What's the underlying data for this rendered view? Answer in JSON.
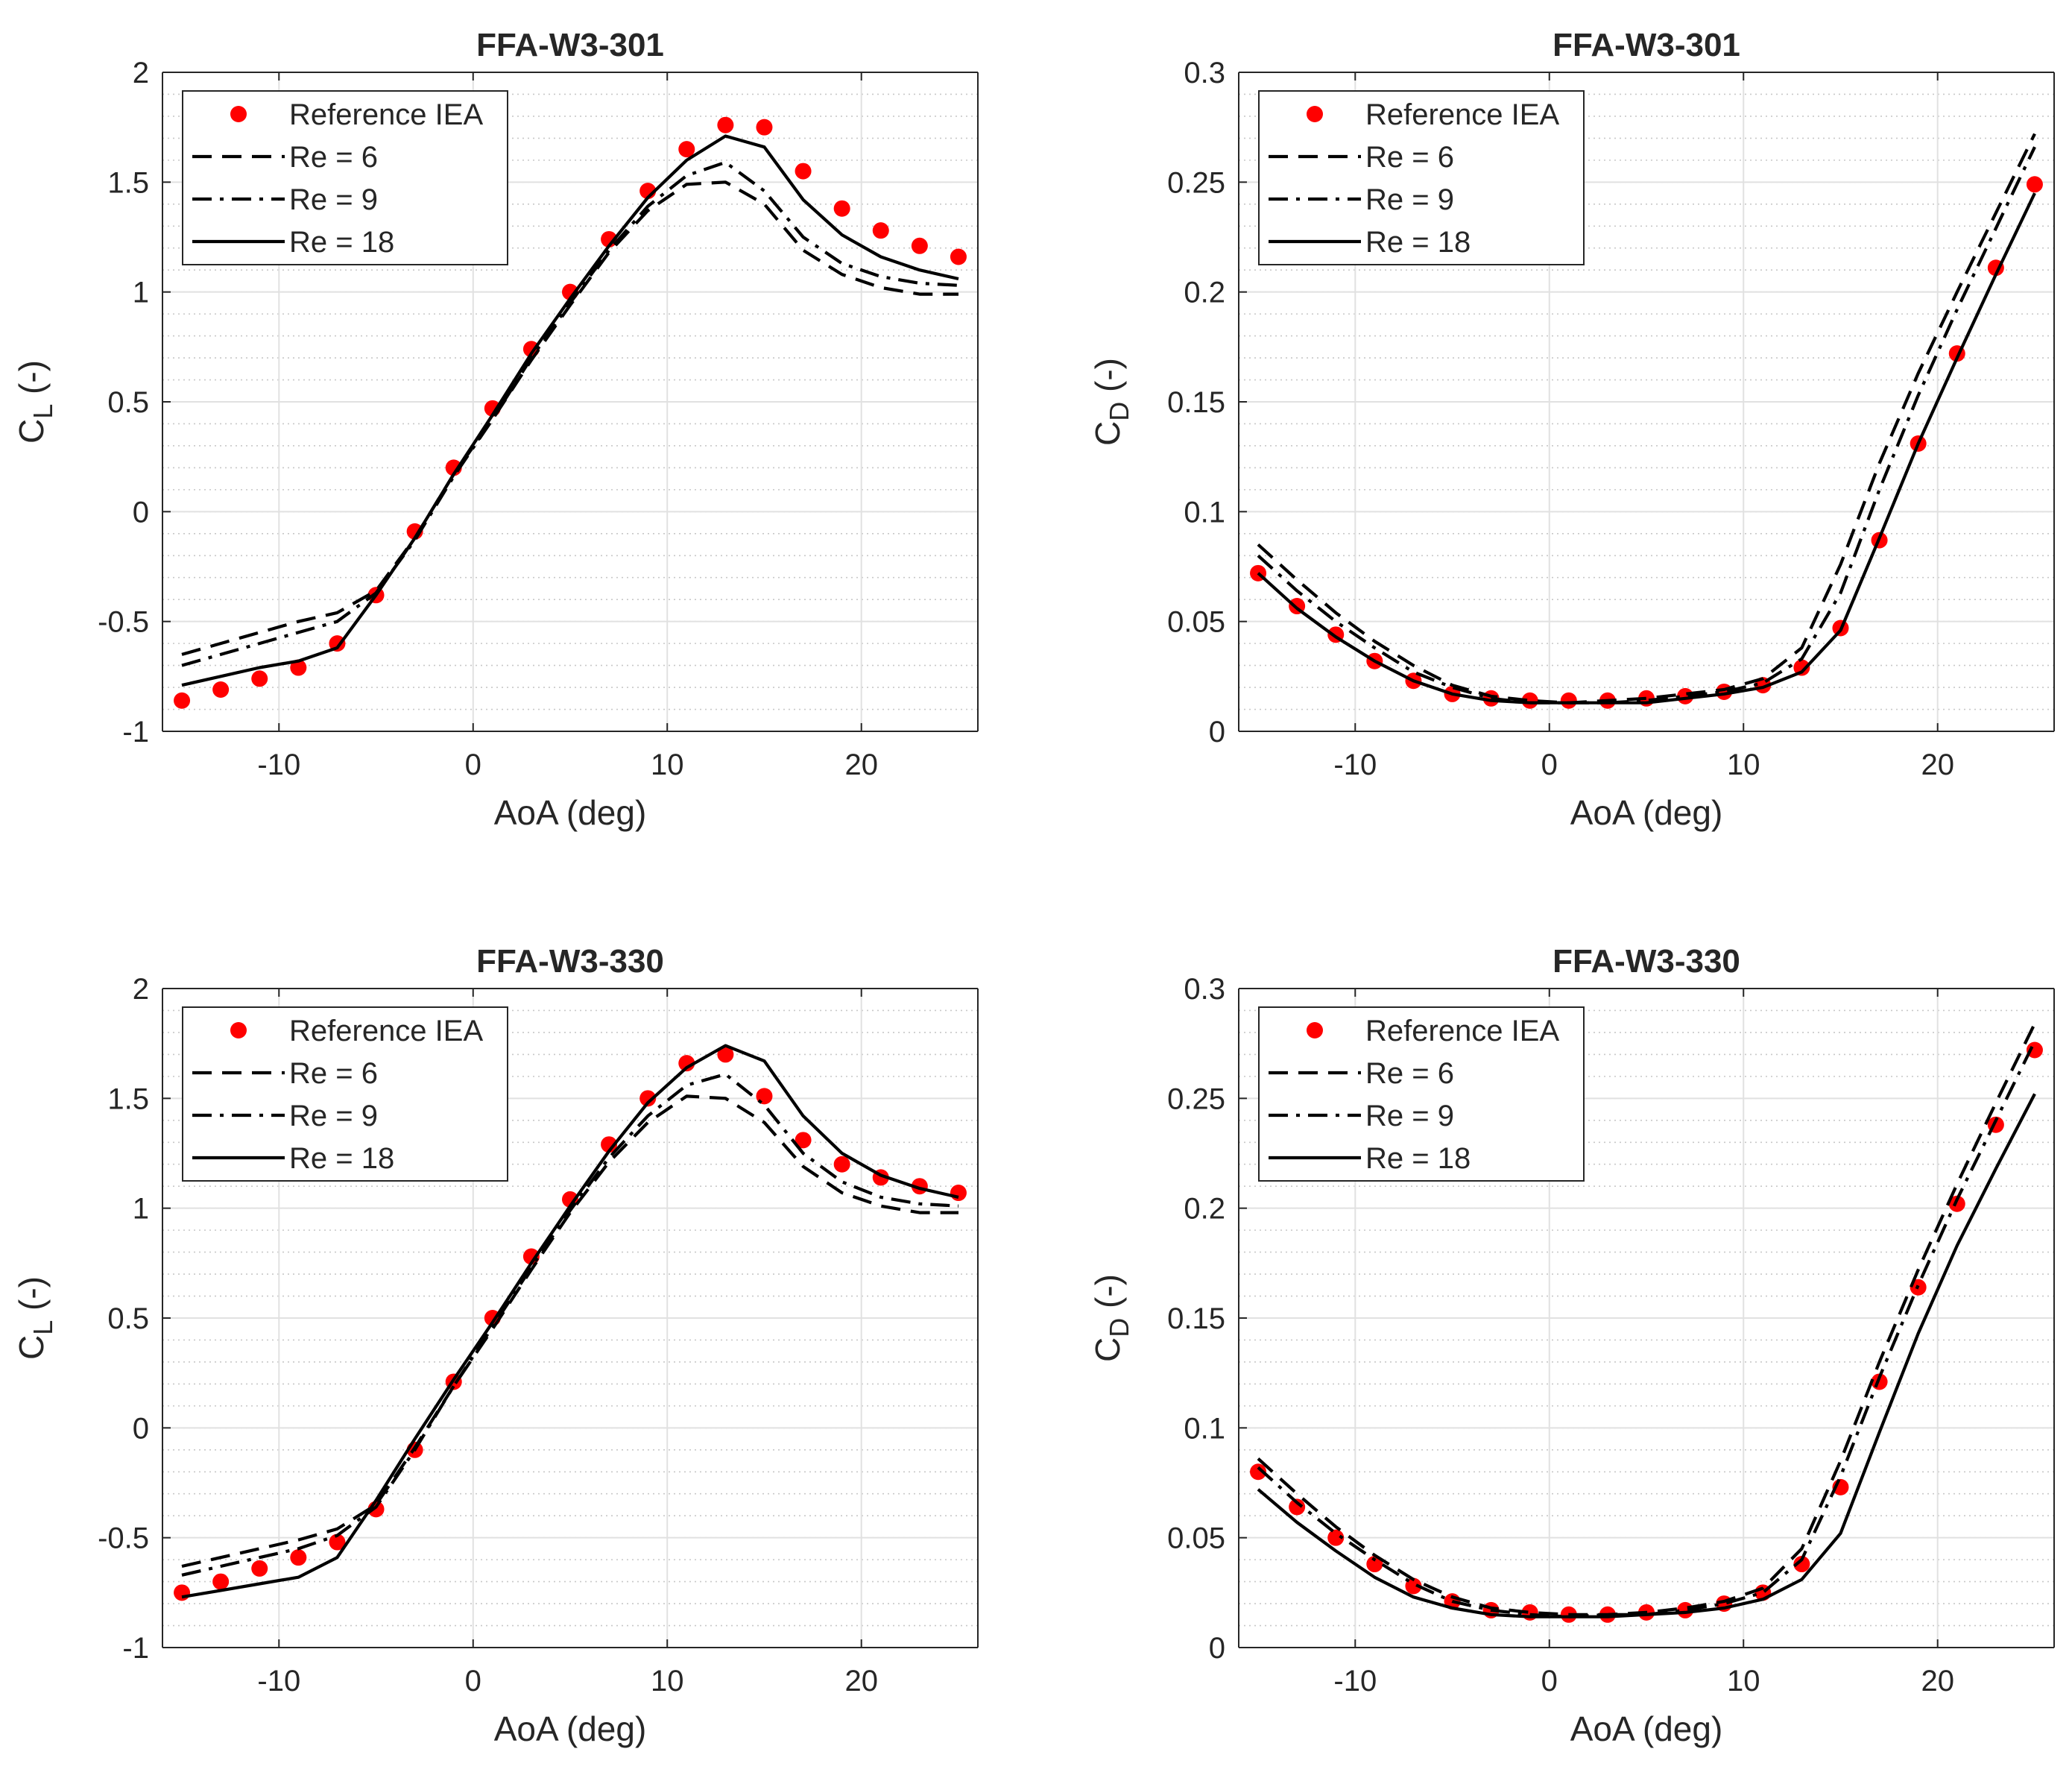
{
  "chart_data": [
    {
      "type": "line",
      "title": "FFA-W3-301",
      "xlabel": "AoA (deg)",
      "ylabel_main": "C",
      "ylabel_sub": "L",
      "ylabel_tail": " (-)",
      "xlim": [
        -16,
        26
      ],
      "ylim": [
        -1,
        2
      ],
      "xticks": [
        -10,
        0,
        10,
        20
      ],
      "xtick_labels": [
        "-10",
        "0",
        "10",
        "20"
      ],
      "yticks": [
        -1,
        -0.5,
        0,
        0.5,
        1,
        1.5,
        2
      ],
      "ytick_labels": [
        "-1",
        "-0.5",
        "0",
        "0.5",
        "1",
        "1.5",
        "2"
      ],
      "minor_ystep": 0.1,
      "grid": true,
      "legend_position": "top-left",
      "series": [
        {
          "name": "Reference IEA",
          "style": "markers",
          "color": "#ff0000",
          "x": [
            -15,
            -13,
            -11,
            -9,
            -7,
            -5,
            -3,
            -1,
            1,
            3,
            5,
            7,
            9,
            11,
            13,
            15,
            17,
            19,
            21,
            23,
            25
          ],
          "y": [
            -0.86,
            -0.81,
            -0.76,
            -0.71,
            -0.6,
            -0.38,
            -0.09,
            0.2,
            0.47,
            0.74,
            1.0,
            1.24,
            1.46,
            1.65,
            1.76,
            1.75,
            1.55,
            1.38,
            1.28,
            1.21,
            1.16
          ]
        },
        {
          "name": "Re = 6",
          "style": "dashed",
          "color": "#000000",
          "x": [
            -15,
            -13,
            -11,
            -9,
            -7,
            -5,
            -3,
            -1,
            1,
            3,
            5,
            7,
            9,
            11,
            13,
            15,
            17,
            19,
            21,
            23,
            25
          ],
          "y": [
            -0.65,
            -0.6,
            -0.55,
            -0.5,
            -0.46,
            -0.36,
            -0.12,
            0.17,
            0.42,
            0.69,
            0.94,
            1.18,
            1.37,
            1.49,
            1.5,
            1.4,
            1.19,
            1.08,
            1.02,
            0.99,
            0.99
          ]
        },
        {
          "name": "Re = 9",
          "style": "dashdot",
          "color": "#000000",
          "x": [
            -15,
            -13,
            -11,
            -9,
            -7,
            -5,
            -3,
            -1,
            1,
            3,
            5,
            7,
            9,
            11,
            13,
            15,
            17,
            19,
            21,
            23,
            25
          ],
          "y": [
            -0.7,
            -0.65,
            -0.6,
            -0.55,
            -0.5,
            -0.37,
            -0.13,
            0.16,
            0.42,
            0.7,
            0.95,
            1.19,
            1.39,
            1.53,
            1.59,
            1.46,
            1.25,
            1.13,
            1.07,
            1.04,
            1.03
          ]
        },
        {
          "name": "Re = 18",
          "style": "solid",
          "color": "#000000",
          "x": [
            -15,
            -13,
            -11,
            -9,
            -7,
            -5,
            -3,
            -1,
            1,
            3,
            5,
            7,
            9,
            11,
            13,
            15,
            17,
            19,
            21,
            23,
            25
          ],
          "y": [
            -0.79,
            -0.75,
            -0.71,
            -0.68,
            -0.62,
            -0.38,
            -0.12,
            0.17,
            0.44,
            0.72,
            0.97,
            1.21,
            1.43,
            1.6,
            1.71,
            1.66,
            1.42,
            1.26,
            1.16,
            1.1,
            1.06
          ]
        }
      ]
    },
    {
      "type": "line",
      "title": "FFA-W3-301",
      "xlabel": "AoA (deg)",
      "ylabel_main": "C",
      "ylabel_sub": "D",
      "ylabel_tail": " (-)",
      "xlim": [
        -16,
        26
      ],
      "ylim": [
        0,
        0.3
      ],
      "xticks": [
        -10,
        0,
        10,
        20
      ],
      "xtick_labels": [
        "-10",
        "0",
        "10",
        "20"
      ],
      "yticks": [
        0,
        0.05,
        0.1,
        0.15,
        0.2,
        0.25,
        0.3
      ],
      "ytick_labels": [
        "0",
        "0.05",
        "0.1",
        "0.15",
        "0.2",
        "0.25",
        "0.3"
      ],
      "minor_ystep": 0.01,
      "grid": true,
      "legend_position": "top-left",
      "series": [
        {
          "name": "Reference IEA",
          "style": "markers",
          "color": "#ff0000",
          "x": [
            -15,
            -13,
            -11,
            -9,
            -7,
            -5,
            -3,
            -1,
            1,
            3,
            5,
            7,
            9,
            11,
            13,
            15,
            17,
            19,
            21,
            23,
            25
          ],
          "y": [
            0.072,
            0.057,
            0.044,
            0.032,
            0.023,
            0.017,
            0.015,
            0.014,
            0.014,
            0.014,
            0.015,
            0.016,
            0.018,
            0.021,
            0.029,
            0.047,
            0.087,
            0.131,
            0.172,
            0.211,
            0.249
          ]
        },
        {
          "name": "Re = 6",
          "style": "dashed",
          "color": "#000000",
          "x": [
            -15,
            -13,
            -11,
            -9,
            -7,
            -5,
            -3,
            -1,
            1,
            3,
            5,
            7,
            9,
            11,
            13,
            15,
            17,
            19,
            21,
            23,
            25
          ],
          "y": [
            0.085,
            0.069,
            0.054,
            0.041,
            0.03,
            0.021,
            0.016,
            0.014,
            0.013,
            0.014,
            0.015,
            0.017,
            0.019,
            0.024,
            0.038,
            0.076,
            0.122,
            0.163,
            0.2,
            0.236,
            0.272
          ]
        },
        {
          "name": "Re = 9",
          "style": "dashdot",
          "color": "#000000",
          "x": [
            -15,
            -13,
            -11,
            -9,
            -7,
            -5,
            -3,
            -1,
            1,
            3,
            5,
            7,
            9,
            11,
            13,
            15,
            17,
            19,
            21,
            23,
            25
          ],
          "y": [
            0.08,
            0.064,
            0.05,
            0.038,
            0.027,
            0.02,
            0.015,
            0.013,
            0.013,
            0.013,
            0.014,
            0.016,
            0.018,
            0.022,
            0.033,
            0.063,
            0.11,
            0.153,
            0.192,
            0.229,
            0.266
          ]
        },
        {
          "name": "Re = 18",
          "style": "solid",
          "color": "#000000",
          "x": [
            -15,
            -13,
            -11,
            -9,
            -7,
            -5,
            -3,
            -1,
            1,
            3,
            5,
            7,
            9,
            11,
            13,
            15,
            17,
            19,
            21,
            23,
            25
          ],
          "y": [
            0.072,
            0.056,
            0.043,
            0.032,
            0.023,
            0.017,
            0.014,
            0.013,
            0.013,
            0.013,
            0.013,
            0.015,
            0.017,
            0.02,
            0.027,
            0.046,
            0.088,
            0.131,
            0.17,
            0.208,
            0.245
          ]
        }
      ]
    },
    {
      "type": "line",
      "title": "FFA-W3-330",
      "xlabel": "AoA (deg)",
      "ylabel_main": "C",
      "ylabel_sub": "L",
      "ylabel_tail": " (-)",
      "xlim": [
        -16,
        26
      ],
      "ylim": [
        -1,
        2
      ],
      "xticks": [
        -10,
        0,
        10,
        20
      ],
      "xtick_labels": [
        "-10",
        "0",
        "10",
        "20"
      ],
      "yticks": [
        -1,
        -0.5,
        0,
        0.5,
        1,
        1.5,
        2
      ],
      "ytick_labels": [
        "-1",
        "-0.5",
        "0",
        "0.5",
        "1",
        "1.5",
        "2"
      ],
      "minor_ystep": 0.1,
      "grid": true,
      "legend_position": "top-left",
      "series": [
        {
          "name": "Reference IEA",
          "style": "markers",
          "color": "#ff0000",
          "x": [
            -15,
            -13,
            -11,
            -9,
            -7,
            -5,
            -3,
            -1,
            1,
            3,
            5,
            7,
            9,
            11,
            13,
            15,
            17,
            19,
            21,
            23,
            25
          ],
          "y": [
            -0.75,
            -0.7,
            -0.64,
            -0.59,
            -0.52,
            -0.37,
            -0.1,
            0.21,
            0.5,
            0.78,
            1.04,
            1.29,
            1.5,
            1.66,
            1.7,
            1.51,
            1.31,
            1.2,
            1.14,
            1.1,
            1.07
          ]
        },
        {
          "name": "Re = 6",
          "style": "dashed",
          "color": "#000000",
          "x": [
            -15,
            -13,
            -11,
            -9,
            -7,
            -5,
            -3,
            -1,
            1,
            3,
            5,
            7,
            9,
            11,
            13,
            15,
            17,
            19,
            21,
            23,
            25
          ],
          "y": [
            -0.63,
            -0.59,
            -0.55,
            -0.51,
            -0.46,
            -0.35,
            -0.09,
            0.19,
            0.45,
            0.72,
            0.98,
            1.21,
            1.39,
            1.51,
            1.5,
            1.39,
            1.19,
            1.07,
            1.01,
            0.98,
            0.98
          ]
        },
        {
          "name": "Re = 9",
          "style": "dashdot",
          "color": "#000000",
          "x": [
            -15,
            -13,
            -11,
            -9,
            -7,
            -5,
            -3,
            -1,
            1,
            3,
            5,
            7,
            9,
            11,
            13,
            15,
            17,
            19,
            21,
            23,
            25
          ],
          "y": [
            -0.67,
            -0.63,
            -0.59,
            -0.55,
            -0.49,
            -0.36,
            -0.1,
            0.19,
            0.46,
            0.73,
            0.99,
            1.23,
            1.42,
            1.56,
            1.61,
            1.47,
            1.25,
            1.12,
            1.05,
            1.02,
            1.01
          ]
        },
        {
          "name": "Re = 18",
          "style": "solid",
          "color": "#000000",
          "x": [
            -15,
            -13,
            -11,
            -9,
            -7,
            -5,
            -3,
            -1,
            1,
            3,
            5,
            7,
            9,
            11,
            13,
            15,
            17,
            19,
            21,
            23,
            25
          ],
          "y": [
            -0.77,
            -0.74,
            -0.71,
            -0.68,
            -0.59,
            -0.33,
            -0.05,
            0.22,
            0.48,
            0.75,
            1.01,
            1.26,
            1.48,
            1.64,
            1.74,
            1.67,
            1.42,
            1.25,
            1.15,
            1.09,
            1.05
          ]
        }
      ]
    },
    {
      "type": "line",
      "title": "FFA-W3-330",
      "xlabel": "AoA (deg)",
      "ylabel_main": "C",
      "ylabel_sub": "D",
      "ylabel_tail": " (-)",
      "xlim": [
        -16,
        26
      ],
      "ylim": [
        0,
        0.3
      ],
      "xticks": [
        -10,
        0,
        10,
        20
      ],
      "xtick_labels": [
        "-10",
        "0",
        "10",
        "20"
      ],
      "yticks": [
        0,
        0.05,
        0.1,
        0.15,
        0.2,
        0.25,
        0.3
      ],
      "ytick_labels": [
        "0",
        "0.05",
        "0.1",
        "0.15",
        "0.2",
        "0.25",
        "0.3"
      ],
      "minor_ystep": 0.01,
      "grid": true,
      "legend_position": "top-left",
      "series": [
        {
          "name": "Reference IEA",
          "style": "markers",
          "color": "#ff0000",
          "x": [
            -15,
            -13,
            -11,
            -9,
            -7,
            -5,
            -3,
            -1,
            1,
            3,
            5,
            7,
            9,
            11,
            13,
            15,
            17,
            19,
            21,
            23,
            25
          ],
          "y": [
            0.08,
            0.064,
            0.05,
            0.038,
            0.028,
            0.021,
            0.017,
            0.016,
            0.015,
            0.015,
            0.016,
            0.017,
            0.02,
            0.025,
            0.038,
            0.073,
            0.121,
            0.164,
            0.202,
            0.238,
            0.272
          ]
        },
        {
          "name": "Re = 6",
          "style": "dashed",
          "color": "#000000",
          "x": [
            -15,
            -13,
            -11,
            -9,
            -7,
            -5,
            -3,
            -1,
            1,
            3,
            5,
            7,
            9,
            11,
            13,
            15,
            17,
            19,
            21,
            23,
            25
          ],
          "y": [
            0.086,
            0.07,
            0.055,
            0.042,
            0.031,
            0.023,
            0.018,
            0.016,
            0.015,
            0.015,
            0.016,
            0.018,
            0.021,
            0.027,
            0.045,
            0.085,
            0.13,
            0.172,
            0.211,
            0.248,
            0.284
          ]
        },
        {
          "name": "Re = 9",
          "style": "dashdot",
          "color": "#000000",
          "x": [
            -15,
            -13,
            -11,
            -9,
            -7,
            -5,
            -3,
            -1,
            1,
            3,
            5,
            7,
            9,
            11,
            13,
            15,
            17,
            19,
            21,
            23,
            25
          ],
          "y": [
            0.082,
            0.066,
            0.052,
            0.04,
            0.029,
            0.021,
            0.017,
            0.015,
            0.014,
            0.015,
            0.015,
            0.017,
            0.02,
            0.025,
            0.04,
            0.078,
            0.123,
            0.165,
            0.204,
            0.24,
            0.276
          ]
        },
        {
          "name": "Re = 18",
          "style": "solid",
          "color": "#000000",
          "x": [
            -15,
            -13,
            -11,
            -9,
            -7,
            -5,
            -3,
            -1,
            1,
            3,
            5,
            7,
            9,
            11,
            13,
            15,
            17,
            19,
            21,
            23,
            25
          ],
          "y": [
            0.072,
            0.057,
            0.044,
            0.032,
            0.023,
            0.018,
            0.015,
            0.014,
            0.014,
            0.014,
            0.015,
            0.016,
            0.018,
            0.022,
            0.031,
            0.052,
            0.098,
            0.143,
            0.183,
            0.218,
            0.252
          ]
        }
      ]
    }
  ]
}
